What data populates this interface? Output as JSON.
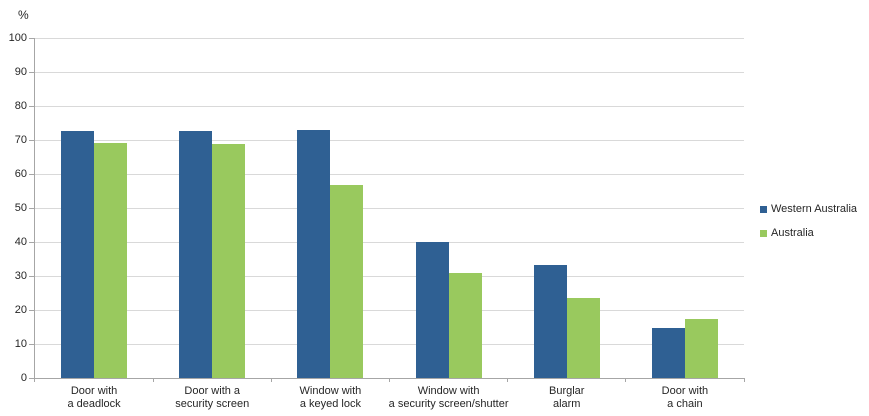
{
  "chart_data": {
    "type": "bar",
    "title": "",
    "ylabel": "%",
    "xlabel": "",
    "categories": [
      [
        "Door with",
        "a deadlock"
      ],
      [
        "Door with a",
        "security screen"
      ],
      [
        "Window with",
        "a keyed lock"
      ],
      [
        "Window with",
        "a security screen/shutter"
      ],
      [
        "Burglar",
        "alarm"
      ],
      [
        "Door with",
        "a chain"
      ]
    ],
    "series": [
      {
        "name": "Western Australia",
        "color": "#2F6093",
        "values": [
          72.7,
          72.7,
          73.0,
          40.1,
          33.2,
          14.6
        ]
      },
      {
        "name": "Australia",
        "color": "#99C95E",
        "values": [
          69.2,
          68.9,
          56.8,
          31.0,
          23.4,
          17.5
        ]
      }
    ],
    "ylim": [
      0,
      100
    ],
    "yticks": [
      0,
      10,
      20,
      30,
      40,
      50,
      60,
      70,
      80,
      90,
      100
    ],
    "grid": true,
    "legend_position": "right"
  },
  "colors": {
    "gridline": "#d9d9d9",
    "axis": "#a6a6a6",
    "text": "#262626",
    "background": "#ffffff"
  }
}
